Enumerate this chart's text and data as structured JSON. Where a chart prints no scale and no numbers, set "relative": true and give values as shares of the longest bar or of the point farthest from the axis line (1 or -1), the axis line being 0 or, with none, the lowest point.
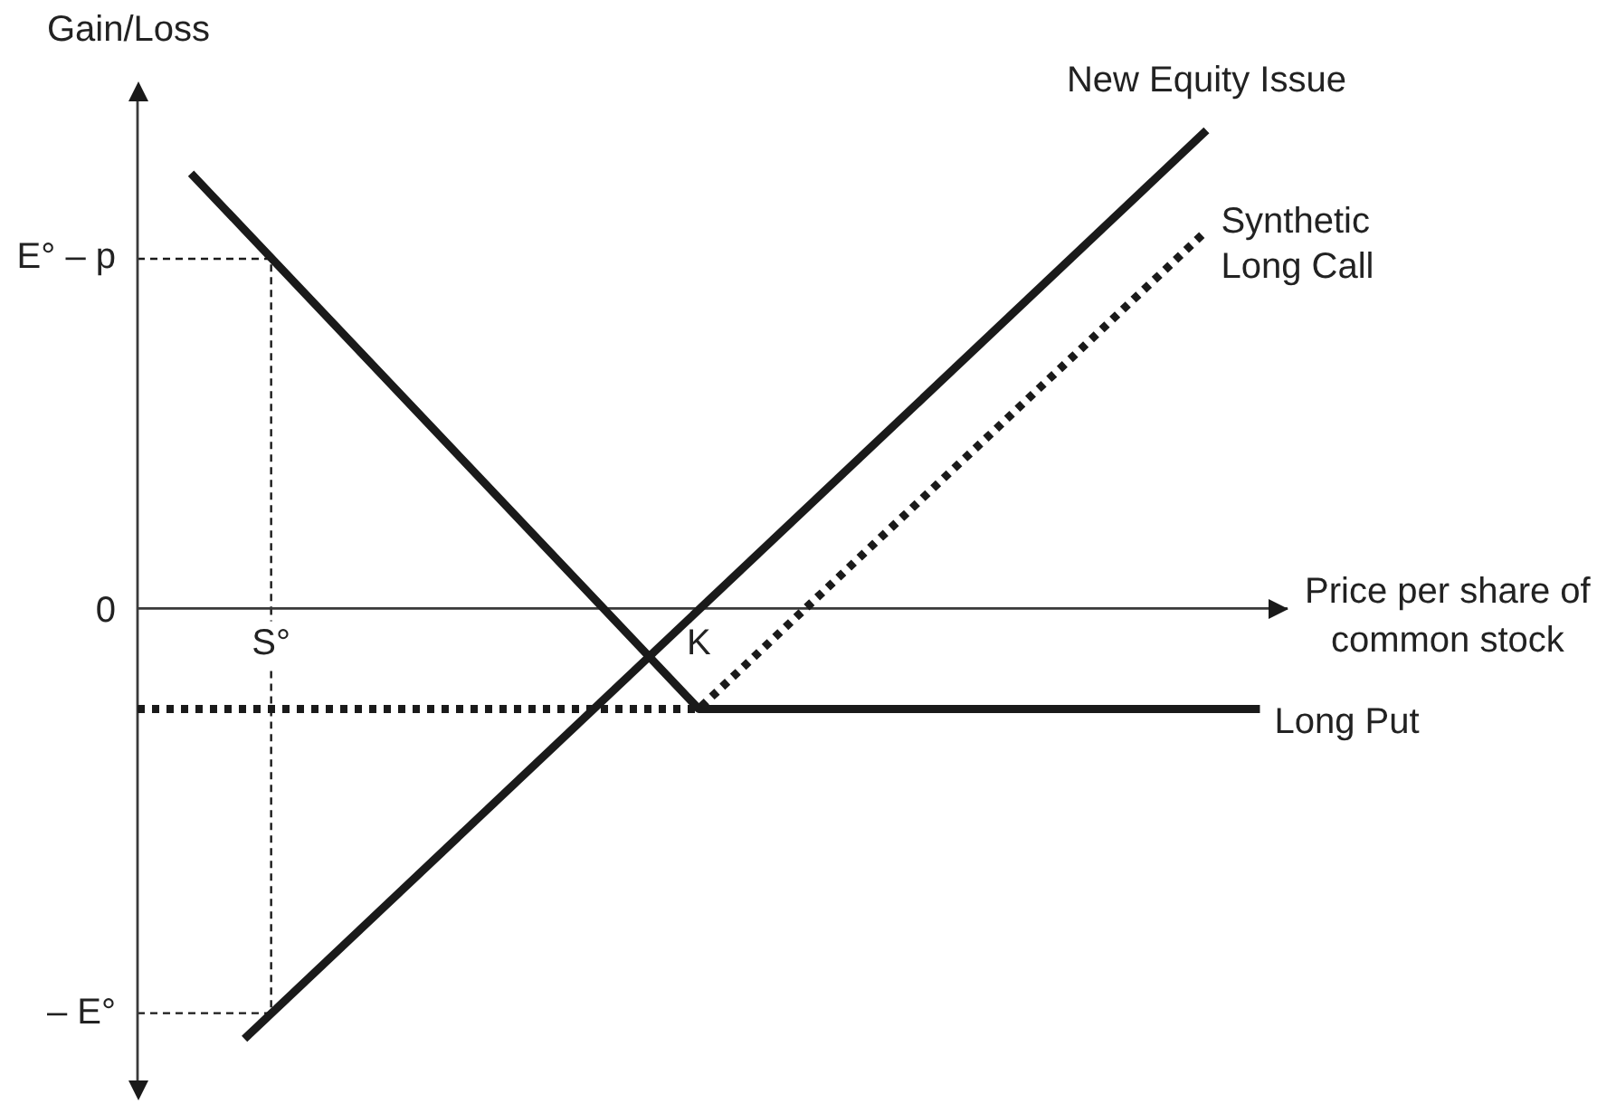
{
  "chart_data": {
    "type": "line",
    "ylabel": "Gain/Loss",
    "xlabel": "Price per share of common stock",
    "relative": true,
    "categories": [
      null,
      null,
      null,
      null,
      null,
      "S°",
      null,
      null,
      null,
      null,
      null,
      null,
      null,
      null,
      null,
      null,
      null,
      null,
      null,
      null,
      null,
      "K",
      null,
      null,
      null,
      null,
      null,
      null,
      null,
      null,
      null,
      null,
      null,
      null,
      null,
      null,
      null,
      null,
      null,
      null,
      null,
      null,
      null,
      null
    ],
    "tick_labels": "x",
    "grid": false,
    "legend": false,
    "marker": "none",
    "series": [
      {
        "name": "Synthetic Long Call",
        "color": "#1a1a1a",
        "line_style": "dotted",
        "values": [
          -0.21,
          null,
          null,
          null,
          null,
          null,
          null,
          null,
          null,
          null,
          null,
          null,
          null,
          null,
          null,
          null,
          null,
          null,
          null,
          null,
          null,
          -0.21,
          null,
          null,
          null,
          null,
          null,
          null,
          null,
          null,
          null,
          null,
          null,
          null,
          null,
          null,
          null,
          null,
          null,
          null,
          0.79,
          null,
          null,
          null
        ]
      },
      {
        "name": "New Equity Issue",
        "color": "#1a1a1a",
        "line_style": "solid",
        "values": [
          null,
          null,
          null,
          null,
          -0.9,
          null,
          null,
          null,
          null,
          null,
          null,
          null,
          null,
          null,
          null,
          null,
          null,
          null,
          null,
          null,
          null,
          null,
          null,
          null,
          null,
          null,
          null,
          null,
          null,
          null,
          null,
          null,
          null,
          null,
          null,
          null,
          null,
          null,
          null,
          null,
          1,
          null,
          null,
          null
        ]
      },
      {
        "name": "Long Put",
        "color": "#1a1a1a",
        "line_style": "solid",
        "values": [
          null,
          null,
          0.91,
          null,
          null,
          null,
          null,
          null,
          null,
          null,
          null,
          null,
          null,
          null,
          null,
          null,
          null,
          null,
          null,
          null,
          null,
          -0.21,
          null,
          null,
          null,
          null,
          null,
          null,
          null,
          null,
          null,
          null,
          null,
          null,
          null,
          null,
          null,
          null,
          null,
          null,
          null,
          null,
          -0.21,
          null
        ]
      }
    ],
    "annotations": [
      "E° – p",
      "0",
      "– E°"
    ]
  }
}
